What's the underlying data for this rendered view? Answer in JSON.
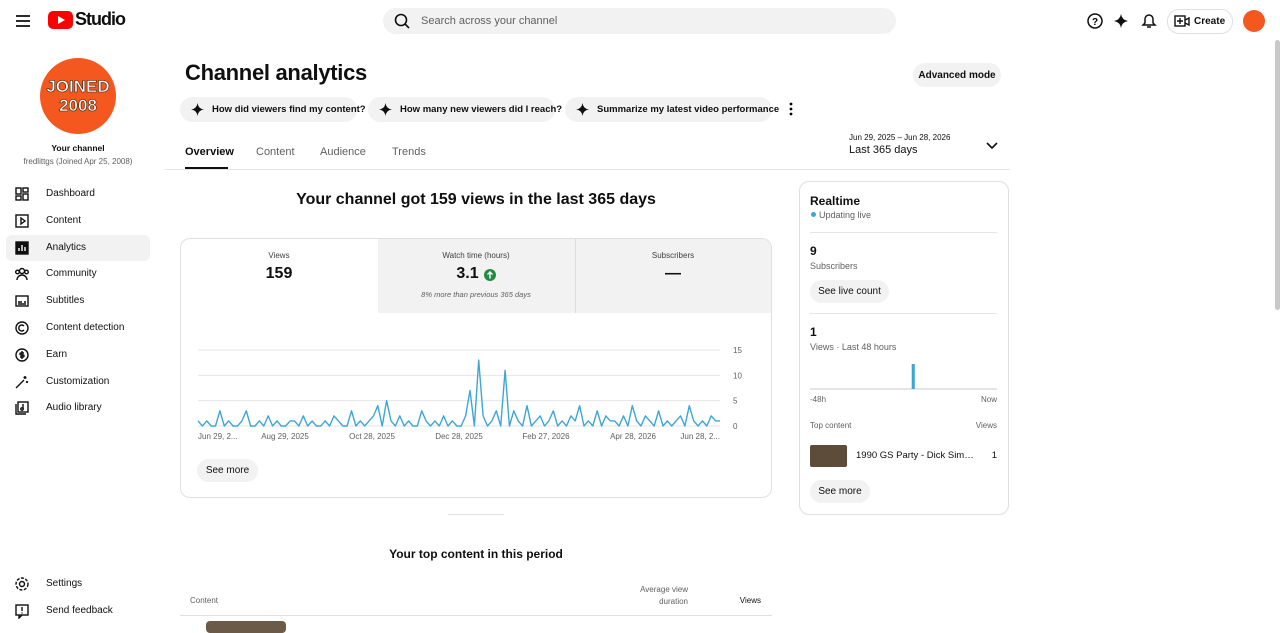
{
  "header": {
    "logo": "Studio",
    "search": "Search across your channel",
    "create": "Create"
  },
  "sidebar": {
    "avatar": [
      "JOINED",
      "2008"
    ],
    "channel_label": "Your channel",
    "channel_name": "fredlittgs (Joined Apr 25, 2008)",
    "nav": [
      "Dashboard",
      "Content",
      "Analytics",
      "Community",
      "Subtitles",
      "Content detection",
      "Earn",
      "Customization",
      "Audio library"
    ],
    "footer_nav": [
      "Settings",
      "Send feedback"
    ]
  },
  "analytics": {
    "title": "Channel analytics",
    "advanced_mode": "Advanced mode",
    "chips": [
      "How did viewers find my content?",
      "How many new viewers did I reach?",
      "Summarize my latest video performance"
    ],
    "date_range": "Jun 29, 2025 – Jun 28, 2026",
    "period": "Last 365 days",
    "tabs": [
      "Overview",
      "Content",
      "Audience",
      "Trends"
    ],
    "headline": "Your channel got 159 views in the last 365 days",
    "metrics": [
      {
        "label": "Views",
        "value": 159
      },
      {
        "label": "Watch time (hours)",
        "value": 3.1,
        "note": "8% more than previous 365 days"
      },
      {
        "label": "Subscribers",
        "value": "—"
      }
    ],
    "chart": {
      "type": "line",
      "color": "#3ea6d6",
      "ylim": [
        0,
        15
      ],
      "yticks": [
        0,
        5,
        10,
        15
      ],
      "grid": true,
      "x_labels": [
        "Jun 29, 2...",
        "Aug 29, 2025",
        "Oct 28, 2025",
        "Dec 28, 2025",
        "Feb 27, 2026",
        "Apr 28, 2026",
        "Jun 28, 2..."
      ],
      "values": [
        1,
        0,
        1,
        0,
        0,
        3,
        0,
        1,
        0,
        0,
        1,
        3,
        0,
        0,
        1,
        0,
        2,
        0,
        1,
        0,
        0,
        1,
        1,
        0,
        2,
        0,
        1,
        0,
        0,
        1,
        0,
        2,
        1,
        0,
        0,
        3,
        0,
        1,
        0,
        1,
        2,
        4,
        0,
        5,
        1,
        0,
        2,
        0,
        1,
        0,
        0,
        3,
        1,
        0,
        1,
        0,
        2,
        0,
        1,
        0,
        0,
        2,
        7,
        0,
        13,
        2,
        0,
        1,
        3,
        0,
        11,
        0,
        3,
        1,
        0,
        4,
        0,
        1,
        2,
        0,
        1,
        3,
        0,
        1,
        0,
        2,
        1,
        4,
        0,
        1,
        0,
        3,
        0,
        2,
        1,
        1,
        0,
        2,
        0,
        4,
        1,
        0,
        2,
        1,
        0,
        3,
        0,
        1,
        0,
        1,
        2,
        0,
        4,
        1,
        0,
        1,
        0,
        2,
        1,
        1
      ]
    },
    "see_more": "See more",
    "top_content_title": "Your top content in this period",
    "table_headers": [
      "Content",
      "Average view duration",
      "Views"
    ]
  },
  "realtime": {
    "title": "Realtime",
    "status": "Updating live",
    "subscribers": 9,
    "subscribers_label": "Subscribers",
    "live_count": "See live count",
    "views": 1,
    "views_label": "Views · Last 48 hours",
    "chart": {
      "type": "bar",
      "color": "#3ea6d6",
      "values": [
        0,
        0,
        0,
        0,
        0,
        0,
        0,
        0,
        0,
        0,
        0,
        0,
        0,
        0,
        0,
        0,
        0,
        0,
        0,
        0,
        0,
        0,
        0,
        0,
        0,
        0,
        1,
        0,
        0,
        0,
        0,
        0,
        0,
        0,
        0,
        0,
        0,
        0,
        0,
        0,
        0,
        0,
        0,
        0,
        0,
        0,
        0,
        0
      ],
      "x_labels": [
        "-48h",
        "Now"
      ]
    },
    "top_content_label": "Top content",
    "views_header": "Views",
    "top_content": [
      {
        "title": "1990 GS Party - Dick Simon…",
        "views": 1
      }
    ],
    "see_more": "See more"
  }
}
